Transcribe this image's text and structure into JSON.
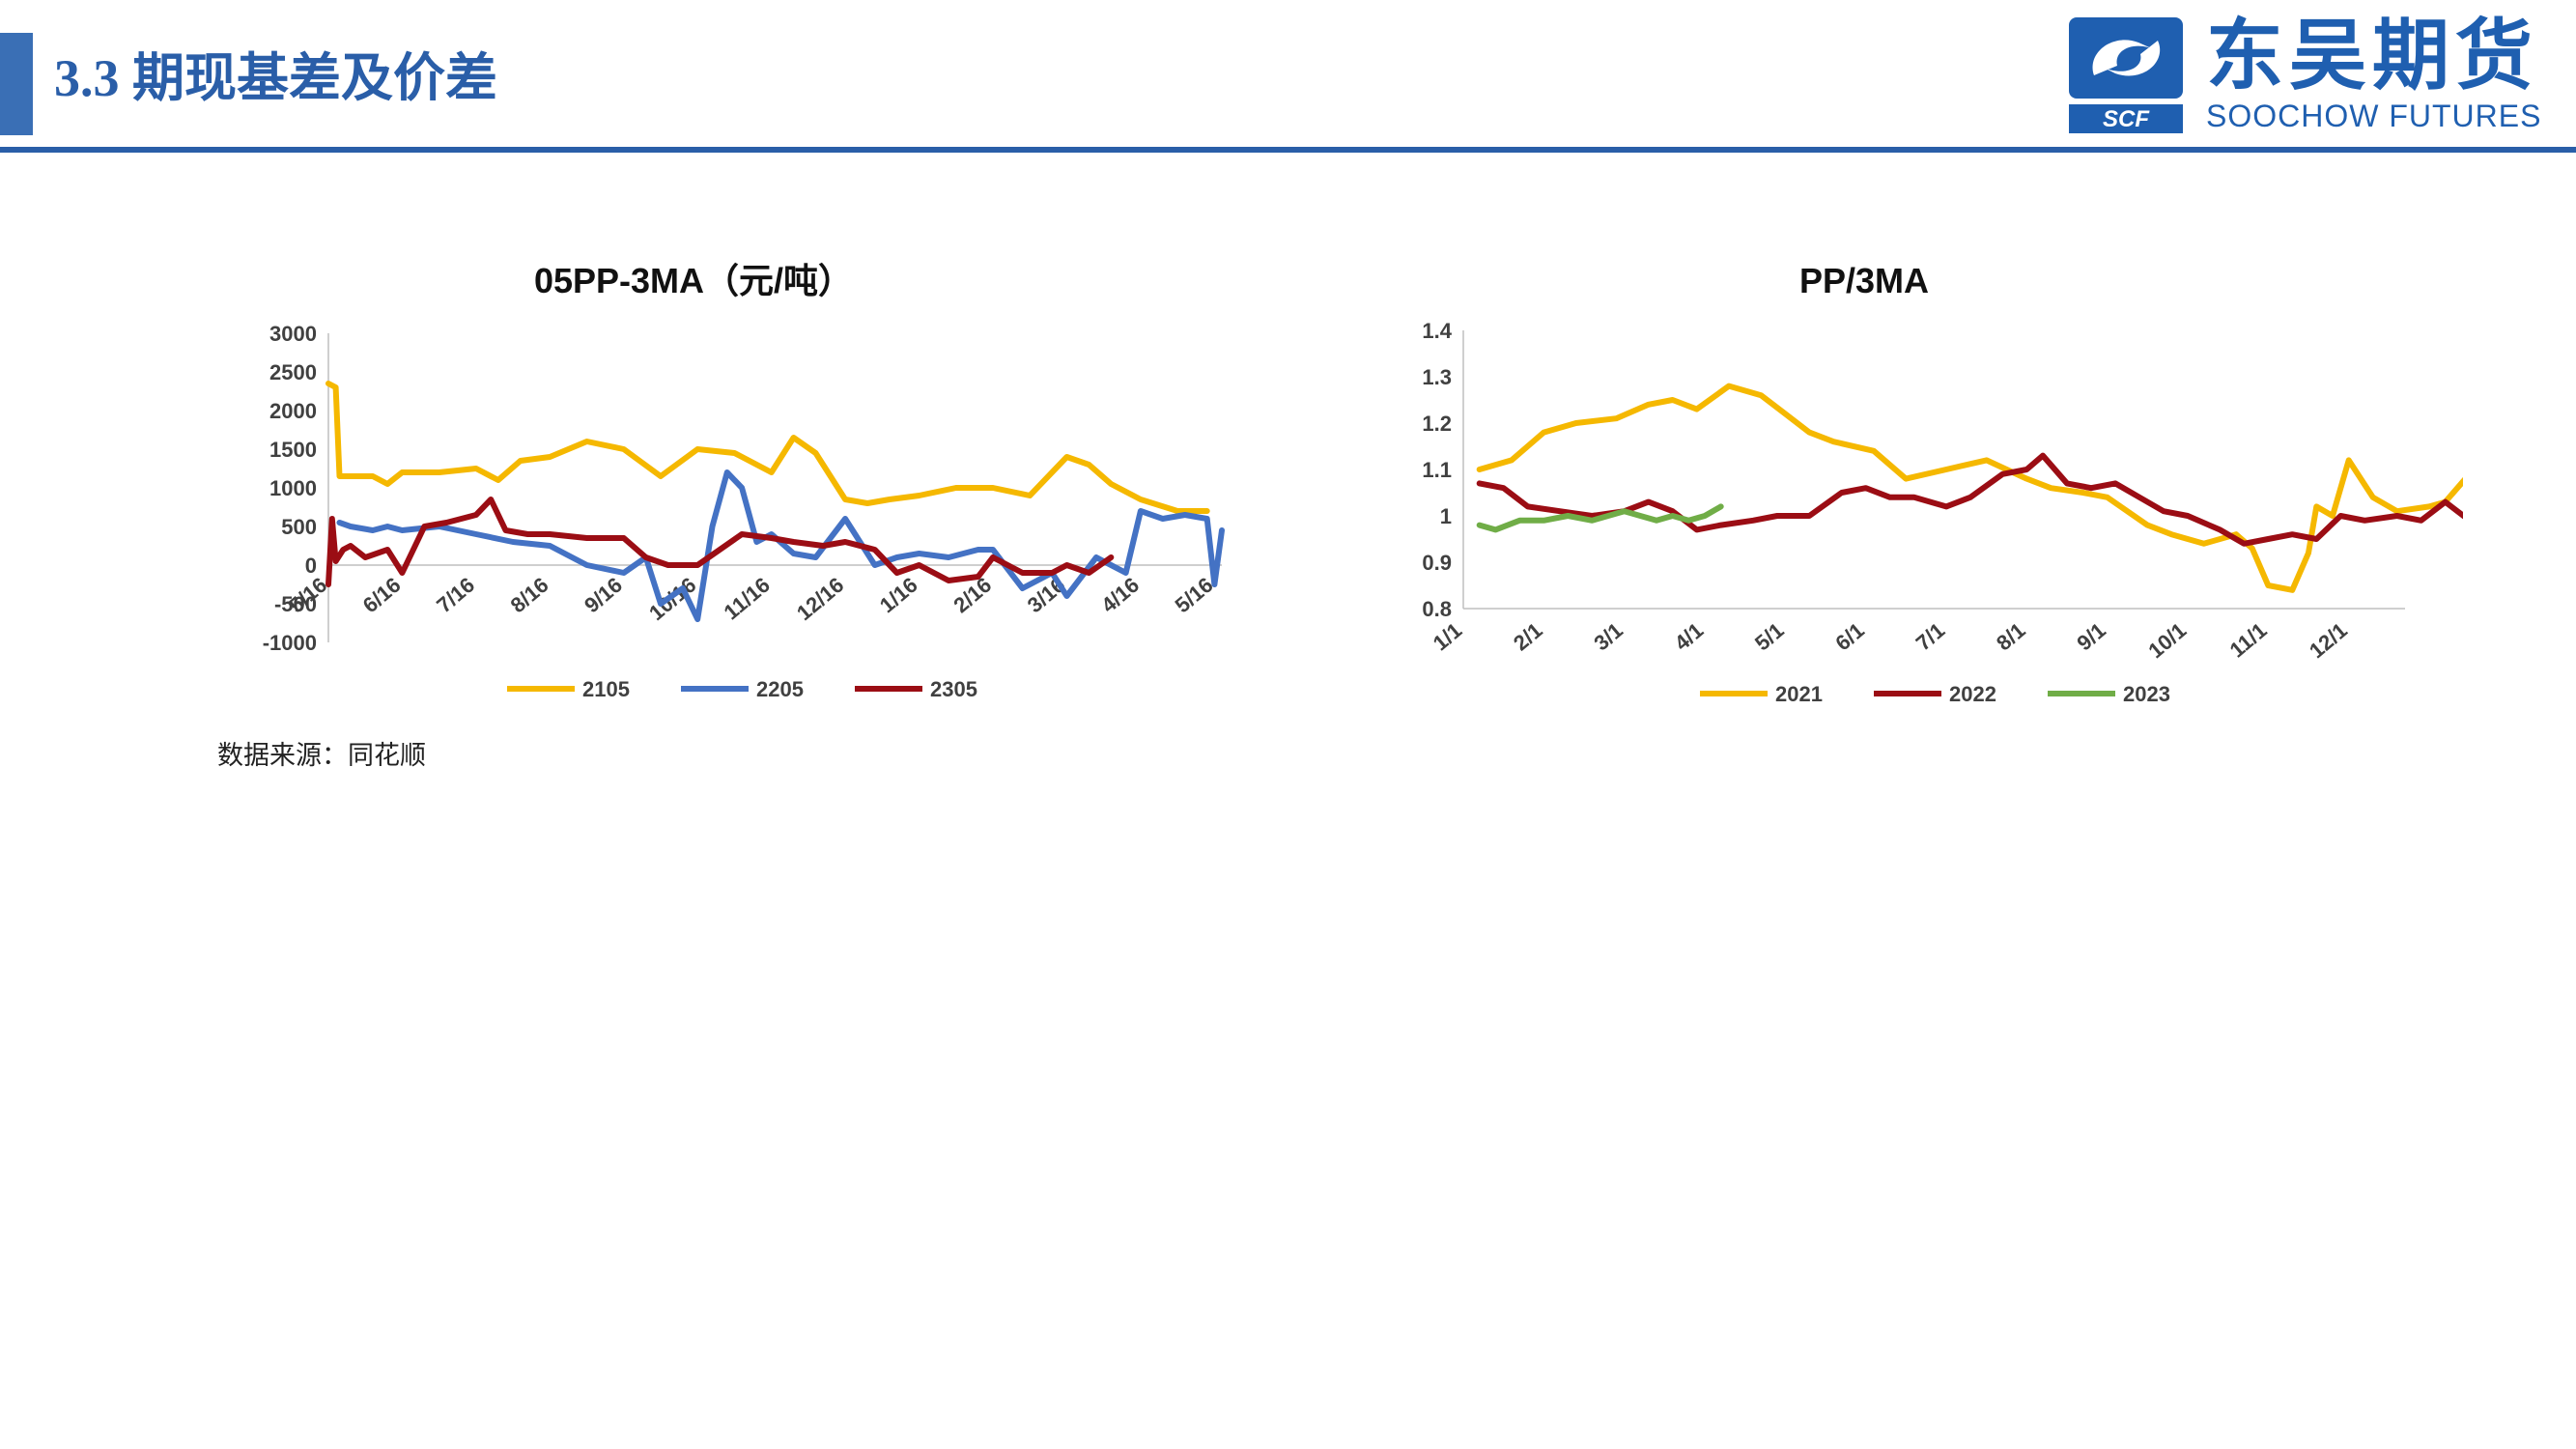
{
  "slide": {
    "section_title": "3.3 期现基差及价差",
    "logo_cn": "东吴期货",
    "logo_en": "SOOCHOW FUTURES",
    "logo_mark": "SCF",
    "source_note": "数据来源：同花顺"
  },
  "colors": {
    "brand": "#2a5ea8",
    "yellow": "#f5b800",
    "blue": "#4472c4",
    "darkred": "#9b0d14",
    "green": "#70ad47"
  },
  "chart_data": [
    {
      "type": "line",
      "title": "05PP-3MA（元/吨）",
      "xlabel": "",
      "ylabel": "",
      "ylim": [
        -1000,
        3000
      ],
      "yticks": [
        "3000",
        "2500",
        "2000",
        "1500",
        "1000",
        "500",
        "0",
        "-500",
        "-1000"
      ],
      "ytick_values": [
        3000,
        2500,
        2000,
        1500,
        1000,
        500,
        0,
        -500,
        -1000
      ],
      "xticks": [
        "5/16",
        "6/16",
        "7/16",
        "8/16",
        "9/16",
        "10/16",
        "11/16",
        "12/16",
        "1/16",
        "2/16",
        "3/16",
        "4/16",
        "5/16"
      ],
      "legend_position": "bottom",
      "series": [
        {
          "name": "2105",
          "color": "#f5b800",
          "x": [
            0,
            0.1,
            0.15,
            0.3,
            0.6,
            0.8,
            1.0,
            1.5,
            2.0,
            2.3,
            2.6,
            3.0,
            3.5,
            4.0,
            4.5,
            5.0,
            5.5,
            6.0,
            6.3,
            6.6,
            7.0,
            7.3,
            7.6,
            8.0,
            8.5,
            9.0,
            9.5,
            10.0,
            10.3,
            10.6,
            11.0,
            11.5,
            11.9
          ],
          "values": [
            2350,
            2300,
            1150,
            1150,
            1150,
            1050,
            1200,
            1200,
            1250,
            1100,
            1350,
            1400,
            1600,
            1500,
            1150,
            1500,
            1450,
            1200,
            1650,
            1450,
            850,
            800,
            850,
            900,
            1000,
            1000,
            900,
            1400,
            1300,
            1050,
            850,
            700,
            700
          ]
        },
        {
          "name": "2205",
          "color": "#4472c4",
          "x": [
            0.15,
            0.3,
            0.6,
            0.8,
            1.0,
            1.5,
            2.0,
            2.5,
            3.0,
            3.5,
            4.0,
            4.3,
            4.5,
            4.8,
            5.0,
            5.2,
            5.4,
            5.6,
            5.8,
            6.0,
            6.3,
            6.6,
            7.0,
            7.4,
            7.7,
            8.0,
            8.4,
            8.8,
            9.0,
            9.4,
            9.8,
            10.0,
            10.4,
            10.8,
            11.0,
            11.3,
            11.6,
            11.9,
            12.0,
            12.1
          ],
          "values": [
            550,
            500,
            450,
            500,
            450,
            500,
            400,
            300,
            250,
            0,
            -100,
            100,
            -500,
            -300,
            -700,
            500,
            1200,
            1000,
            300,
            400,
            150,
            100,
            600,
            0,
            100,
            150,
            100,
            200,
            200,
            -300,
            -100,
            -400,
            100,
            -100,
            700,
            600,
            650,
            600,
            -250,
            450
          ]
        },
        {
          "name": "2305",
          "color": "#9b0d14",
          "x": [
            0,
            0.05,
            0.1,
            0.2,
            0.3,
            0.5,
            0.8,
            1.0,
            1.3,
            1.6,
            2.0,
            2.2,
            2.4,
            2.7,
            3.0,
            3.5,
            4.0,
            4.3,
            4.6,
            5.0,
            5.3,
            5.6,
            6.0,
            6.3,
            6.7,
            7.0,
            7.4,
            7.7,
            8.0,
            8.4,
            8.8,
            9.0,
            9.4,
            9.8,
            10.0,
            10.3,
            10.6
          ],
          "values": [
            -250,
            600,
            50,
            200,
            250,
            100,
            200,
            -100,
            500,
            550,
            650,
            850,
            450,
            400,
            400,
            350,
            350,
            100,
            0,
            0,
            200,
            400,
            350,
            300,
            250,
            300,
            200,
            -100,
            0,
            -200,
            -150,
            100,
            -100,
            -100,
            0,
            -100,
            100
          ]
        }
      ]
    },
    {
      "type": "line",
      "title": "PP/3MA",
      "xlabel": "",
      "ylabel": "",
      "ylim": [
        0.8,
        1.4
      ],
      "yticks": [
        "1.4",
        "1.3",
        "1.2",
        "1.1",
        "1",
        "0.9",
        "0.8"
      ],
      "ytick_values": [
        1.4,
        1.3,
        1.2,
        1.1,
        1.0,
        0.9,
        0.8
      ],
      "xticks": [
        "1/1",
        "2/1",
        "3/1",
        "4/1",
        "5/1",
        "6/1",
        "7/1",
        "8/1",
        "9/1",
        "10/1",
        "11/1",
        "12/1"
      ],
      "legend_position": "bottom",
      "series": [
        {
          "name": "2021",
          "color": "#f5b800",
          "x": [
            0.2,
            0.6,
            1.0,
            1.4,
            1.9,
            2.3,
            2.6,
            2.9,
            3.3,
            3.7,
            4.0,
            4.3,
            4.6,
            5.1,
            5.5,
            6.0,
            6.5,
            7.0,
            7.3,
            7.7,
            8.0,
            8.5,
            8.8,
            9.2,
            9.6,
            9.8,
            10.0,
            10.3,
            10.5,
            10.6,
            10.8,
            11.0,
            11.3,
            11.6,
            12.0,
            12.2,
            12.3,
            12.5
          ],
          "values": [
            1.1,
            1.12,
            1.18,
            1.2,
            1.21,
            1.24,
            1.25,
            1.23,
            1.28,
            1.26,
            1.22,
            1.18,
            1.16,
            1.14,
            1.08,
            1.1,
            1.12,
            1.08,
            1.06,
            1.05,
            1.04,
            0.98,
            0.96,
            0.94,
            0.96,
            0.93,
            0.85,
            0.84,
            0.92,
            1.02,
            1.0,
            1.12,
            1.04,
            1.01,
            1.02,
            1.03,
            1.05,
            1.09
          ]
        },
        {
          "name": "2022",
          "color": "#9b0d14",
          "x": [
            0.2,
            0.5,
            0.8,
            1.2,
            1.6,
            2.0,
            2.3,
            2.6,
            2.9,
            3.2,
            3.6,
            3.9,
            4.3,
            4.7,
            5.0,
            5.3,
            5.6,
            6.0,
            6.3,
            6.7,
            7.0,
            7.2,
            7.5,
            7.8,
            8.1,
            8.4,
            8.7,
            9.0,
            9.4,
            9.7,
            10.0,
            10.3,
            10.6,
            10.9,
            11.2,
            11.6,
            11.9,
            12.2,
            12.5
          ],
          "values": [
            1.07,
            1.06,
            1.02,
            1.01,
            1.0,
            1.01,
            1.03,
            1.01,
            0.97,
            0.98,
            0.99,
            1.0,
            1.0,
            1.05,
            1.06,
            1.04,
            1.04,
            1.02,
            1.04,
            1.09,
            1.1,
            1.13,
            1.07,
            1.06,
            1.07,
            1.04,
            1.01,
            1.0,
            0.97,
            0.94,
            0.95,
            0.96,
            0.95,
            1.0,
            0.99,
            1.0,
            0.99,
            1.03,
            0.99
          ]
        },
        {
          "name": "2023",
          "color": "#70ad47",
          "x": [
            0.2,
            0.4,
            0.7,
            1.0,
            1.3,
            1.6,
            1.8,
            2.0,
            2.2,
            2.4,
            2.6,
            2.8,
            3.0,
            3.2
          ],
          "values": [
            0.98,
            0.97,
            0.99,
            0.99,
            1.0,
            0.99,
            1.0,
            1.01,
            1.0,
            0.99,
            1.0,
            0.99,
            1.0,
            1.02
          ]
        }
      ]
    }
  ]
}
